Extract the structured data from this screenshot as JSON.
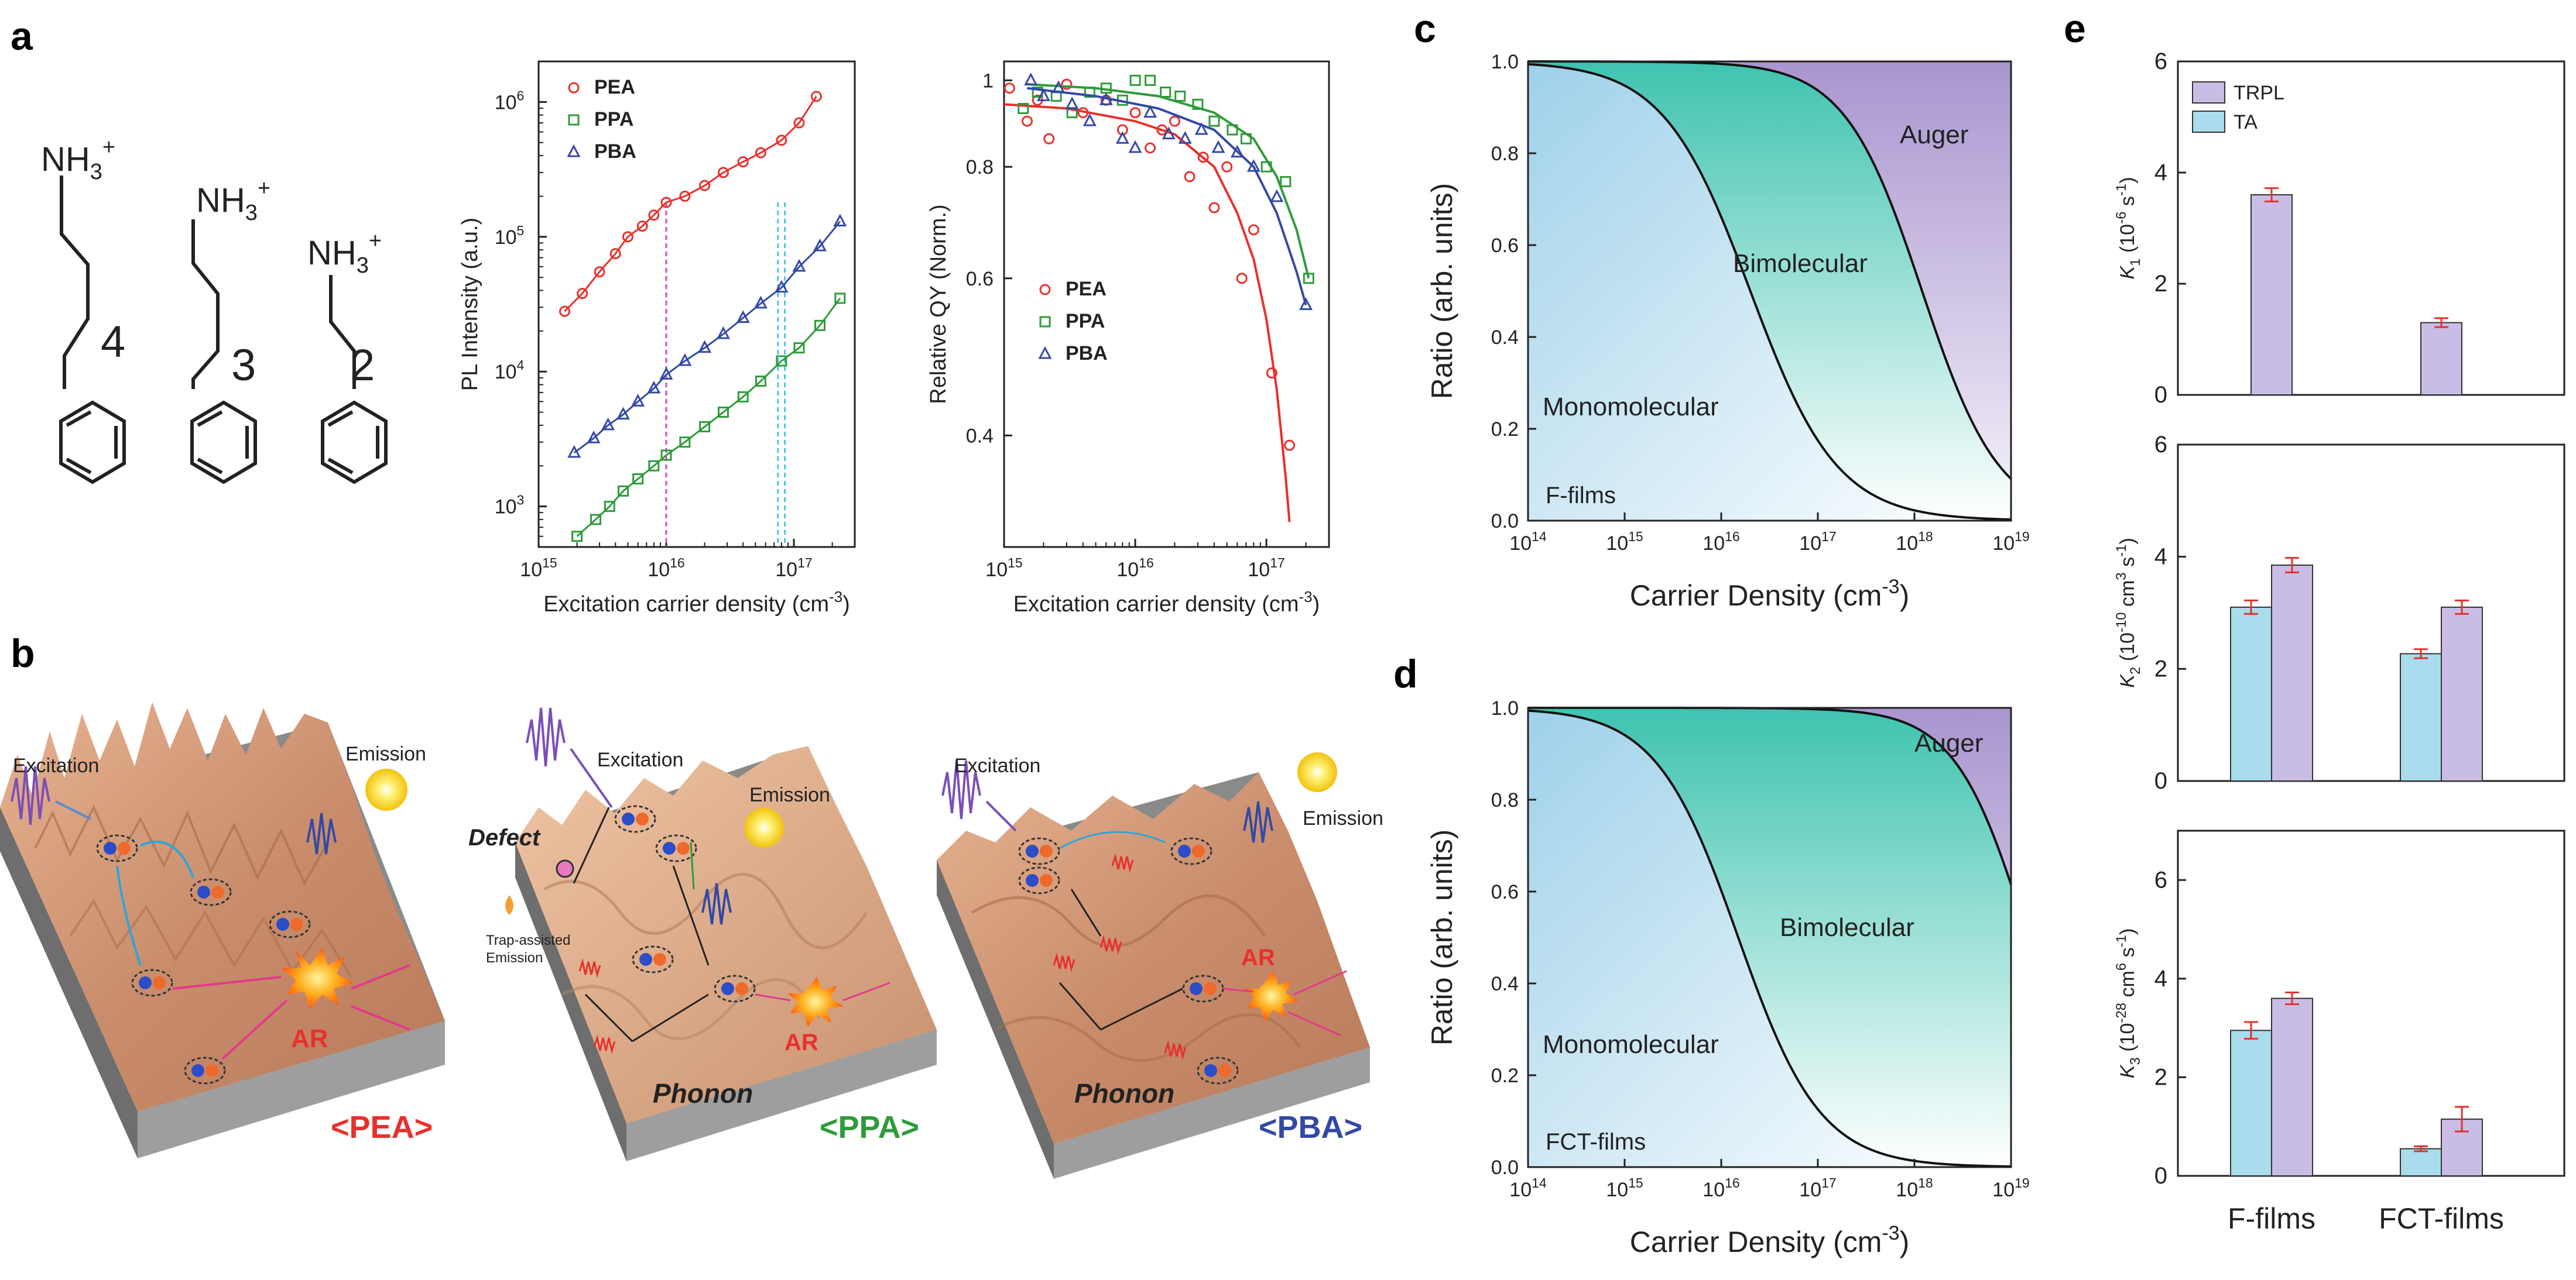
{
  "panel_labels": {
    "a": "a",
    "b": "b",
    "c": "c",
    "d": "d",
    "e": "e"
  },
  "molecules": {
    "n4": "4",
    "n3": "3",
    "n2": "2",
    "amine_prefix": "NH",
    "amine_sub": "3",
    "amine_sup": "+"
  },
  "scenes": {
    "excitation": "Excitation",
    "emission": "Emission",
    "defect": "Defect",
    "trap_line1": "Trap-assisted",
    "trap_line2": "Emission",
    "phonon": "Phonon",
    "ar": "AR",
    "pea": "<PEA>",
    "ppa": "<PPA>",
    "pba": "<PBA>"
  },
  "colors": {
    "pea": "#e8302c",
    "ppa": "#2e9b3a",
    "pba": "#3349a6",
    "auger": "#a896ce",
    "bimolecular": "#3fc2b0",
    "monomolecular": "#a7d6ec",
    "trpl": "#c9bde6",
    "ta": "#a9dcec",
    "errorbar": "#e5302c"
  },
  "chart_data": [
    {
      "id": "pl",
      "type": "scatter",
      "xlabel": "Excitation carrier density (cm",
      "xlabel_sup": "-3",
      "xlabel_end": ")",
      "ylabel": "PL Intensity (a.u.)",
      "xscale": "log",
      "yscale": "log",
      "xlim": [
        1000000000000000.0,
        3e+17
      ],
      "ylim": [
        500,
        2000000
      ],
      "xticks": [
        {
          "value": 1000000000000000.0,
          "base": "10",
          "exp": "15"
        },
        {
          "value": 1e+16,
          "base": "10",
          "exp": "16"
        },
        {
          "value": 1e+17,
          "base": "10",
          "exp": "17"
        }
      ],
      "yticks": [
        {
          "value": 1000.0,
          "base": "10",
          "exp": "3"
        },
        {
          "value": 10000.0,
          "base": "10",
          "exp": "4"
        },
        {
          "value": 100000.0,
          "base": "10",
          "exp": "5"
        },
        {
          "value": 1000000.0,
          "base": "10",
          "exp": "6"
        }
      ],
      "vlines": [
        {
          "x": 1e+16,
          "color": "#d946c8"
        },
        {
          "x": 7.5e+16,
          "color": "#4cc3e8"
        },
        {
          "x": 8.5e+16,
          "color": "#4cc3e8"
        }
      ],
      "legend": "top-left",
      "series": [
        {
          "name": "PEA",
          "marker": "circle",
          "color": "#e8302c",
          "x": [
            1600000000000000.0,
            2200000000000000.0,
            3000000000000000.0,
            4000000000000000.0,
            5000000000000000.0,
            6500000000000000.0,
            8000000000000000.0,
            1e+16,
            1.4e+16,
            2e+16,
            2.8e+16,
            4e+16,
            5.5e+16,
            8e+16,
            1.1e+17,
            1.5e+17
          ],
          "y": [
            28000,
            38000,
            55000,
            75000,
            100000,
            120000,
            145000,
            180000,
            200000,
            240000,
            300000,
            360000,
            420000,
            520000,
            700000,
            1100000
          ]
        },
        {
          "name": "PPA",
          "marker": "square",
          "color": "#2e9b3a",
          "x": [
            2000000000000000.0,
            2800000000000000.0,
            3600000000000000.0,
            4600000000000000.0,
            6000000000000000.0,
            8000000000000000.0,
            1e+16,
            1.4e+16,
            2e+16,
            2.8e+16,
            4e+16,
            5.5e+16,
            8e+16,
            1.1e+17,
            1.6e+17,
            2.3e+17
          ],
          "y": [
            600,
            800,
            1000,
            1300,
            1600,
            2000,
            2400,
            3000,
            3900,
            5000,
            6500,
            8500,
            12000,
            15000,
            22000,
            35000
          ]
        },
        {
          "name": "PBA",
          "marker": "triangle",
          "color": "#3349a6",
          "x": [
            1900000000000000.0,
            2700000000000000.0,
            3500000000000000.0,
            4600000000000000.0,
            6000000000000000.0,
            8000000000000000.0,
            1e+16,
            1.4e+16,
            2e+16,
            2.8e+16,
            4e+16,
            5.5e+16,
            8e+16,
            1.1e+17,
            1.6e+17,
            2.3e+17
          ],
          "y": [
            2500,
            3200,
            4000,
            4800,
            6000,
            7500,
            9500,
            12000,
            15000,
            19000,
            25000,
            32000,
            42000,
            60000,
            85000,
            130000
          ]
        }
      ]
    },
    {
      "id": "qy",
      "type": "scatter",
      "xlabel": "Excitation carrier density (cm",
      "xlabel_sup": "-3",
      "xlabel_end": ")",
      "ylabel": "Relative QY (Norm.)",
      "xscale": "log",
      "yscale": "log",
      "xlim": [
        1000000000000000.0,
        3e+17
      ],
      "ylim": [
        0.3,
        1.05
      ],
      "xticks": [
        {
          "value": 1000000000000000.0,
          "base": "10",
          "exp": "15"
        },
        {
          "value": 1e+16,
          "base": "10",
          "exp": "16"
        },
        {
          "value": 1e+17,
          "base": "10",
          "exp": "17"
        }
      ],
      "yticks": [
        {
          "value": 0.4,
          "label": "0.4"
        },
        {
          "value": 0.6,
          "label": "0.6"
        },
        {
          "value": 0.8,
          "label": "0.8"
        },
        {
          "value": 1.0,
          "label": "1"
        }
      ],
      "legend": "middle-left",
      "series": [
        {
          "name": "PEA",
          "marker": "circle",
          "color": "#e8302c",
          "x": [
            1100000000000000.0,
            1500000000000000.0,
            1800000000000000.0,
            2200000000000000.0,
            3000000000000000.0,
            4000000000000000.0,
            6000000000000000.0,
            8000000000000000.0,
            1e+16,
            1.3e+16,
            1.6e+16,
            2e+16,
            2.6e+16,
            3.3e+16,
            4e+16,
            5e+16,
            6.5e+16,
            8e+16,
            1.1e+17,
            1.5e+17
          ],
          "y": [
            0.98,
            0.9,
            0.95,
            0.86,
            0.99,
            0.92,
            0.95,
            0.88,
            0.92,
            0.84,
            0.88,
            0.9,
            0.78,
            0.82,
            0.72,
            0.8,
            0.6,
            0.68,
            0.47,
            0.39
          ],
          "fit_x": [
            1000000000000000.0,
            3000000000000000.0,
            1e+16,
            2e+16,
            4e+16,
            6e+16,
            8e+16,
            1e+17,
            1.2e+17,
            1.4e+17,
            1.5e+17
          ],
          "fit_y": [
            0.94,
            0.93,
            0.9,
            0.87,
            0.8,
            0.71,
            0.63,
            0.54,
            0.45,
            0.36,
            0.32
          ]
        },
        {
          "name": "PPA",
          "marker": "square",
          "color": "#2e9b3a",
          "x": [
            1400000000000000.0,
            1800000000000000.0,
            2500000000000000.0,
            3300000000000000.0,
            4500000000000000.0,
            6000000000000000.0,
            8000000000000000.0,
            1e+16,
            1.3e+16,
            1.7e+16,
            2.2e+16,
            3e+16,
            4e+16,
            5.5e+16,
            7e+16,
            1e+17,
            1.4e+17,
            2.1e+17
          ],
          "y": [
            0.93,
            0.97,
            0.96,
            0.92,
            0.97,
            0.98,
            0.95,
            1.0,
            1.0,
            0.97,
            0.96,
            0.94,
            0.9,
            0.88,
            0.86,
            0.8,
            0.77,
            0.6
          ],
          "fit_x": [
            1500000000000000.0,
            5000000000000000.0,
            1.5e+16,
            4e+16,
            8e+16,
            1.2e+17,
            1.7e+17,
            2.1e+17
          ],
          "fit_y": [
            0.99,
            0.98,
            0.96,
            0.92,
            0.86,
            0.78,
            0.68,
            0.6
          ]
        },
        {
          "name": "PBA",
          "marker": "triangle",
          "color": "#3349a6",
          "x": [
            1600000000000000.0,
            2000000000000000.0,
            2600000000000000.0,
            3300000000000000.0,
            4500000000000000.0,
            6000000000000000.0,
            8000000000000000.0,
            1e+16,
            1.3e+16,
            1.8e+16,
            2.4e+16,
            3.2e+16,
            4.3e+16,
            6e+16,
            8e+16,
            1.2e+17,
            2e+17
          ],
          "y": [
            1.0,
            0.96,
            0.98,
            0.94,
            0.9,
            0.95,
            0.86,
            0.84,
            0.92,
            0.87,
            0.86,
            0.88,
            0.84,
            0.83,
            0.8,
            0.74,
            0.56
          ],
          "fit_x": [
            1500000000000000.0,
            5000000000000000.0,
            1.5e+16,
            4e+16,
            8e+16,
            1.2e+17,
            1.7e+17,
            2e+17
          ],
          "fit_y": [
            0.98,
            0.96,
            0.93,
            0.88,
            0.8,
            0.71,
            0.61,
            0.56
          ]
        }
      ]
    },
    {
      "id": "ratio_c",
      "type": "area",
      "title": "F-films",
      "xlabel": "Carrier Density (cm",
      "xlabel_sup": "-3",
      "xlabel_end": ")",
      "ylabel": "Ratio (arb. units)",
      "xscale": "log",
      "xlim": [
        100000000000000.0,
        1e+19
      ],
      "ylim": [
        0,
        1.0
      ],
      "xticks": [
        {
          "value": 100000000000000.0,
          "base": "10",
          "exp": "14"
        },
        {
          "value": 1000000000000000.0,
          "base": "10",
          "exp": "15"
        },
        {
          "value": 1e+16,
          "base": "10",
          "exp": "16"
        },
        {
          "value": 1e+17,
          "base": "10",
          "exp": "17"
        },
        {
          "value": 1e+18,
          "base": "10",
          "exp": "18"
        },
        {
          "value": 1e+19,
          "base": "10",
          "exp": "19"
        }
      ],
      "yticks": [
        {
          "value": 0.0,
          "label": "0.0"
        },
        {
          "value": 0.2,
          "label": "0.2"
        },
        {
          "value": 0.4,
          "label": "0.4"
        },
        {
          "value": 0.6,
          "label": "0.6"
        },
        {
          "value": 0.8,
          "label": "0.8"
        },
        {
          "value": 1.0,
          "label": "1.0"
        }
      ],
      "region_labels": [
        "Auger",
        "Bimolecular",
        "Monomolecular"
      ],
      "curve1_mid_x": 2e+16,
      "curve1_width": 0.9,
      "curve2_mid_x": 1.2e+18,
      "curve2_width": 0.8
    },
    {
      "id": "ratio_d",
      "type": "area",
      "title": "FCT-films",
      "xlabel": "Carrier Density (cm",
      "xlabel_sup": "-3",
      "xlabel_end": ")",
      "ylabel": "Ratio (arb. units)",
      "xscale": "log",
      "xlim": [
        100000000000000.0,
        1e+19
      ],
      "ylim": [
        0,
        1.0
      ],
      "xticks": [
        {
          "value": 100000000000000.0,
          "base": "10",
          "exp": "14"
        },
        {
          "value": 1000000000000000.0,
          "base": "10",
          "exp": "15"
        },
        {
          "value": 1e+16,
          "base": "10",
          "exp": "16"
        },
        {
          "value": 1e+17,
          "base": "10",
          "exp": "17"
        },
        {
          "value": 1e+18,
          "base": "10",
          "exp": "18"
        },
        {
          "value": 1e+19,
          "base": "10",
          "exp": "19"
        }
      ],
      "yticks": [
        {
          "value": 0.0,
          "label": "0.0"
        },
        {
          "value": 0.2,
          "label": "0.2"
        },
        {
          "value": 0.4,
          "label": "0.4"
        },
        {
          "value": 0.6,
          "label": "0.6"
        },
        {
          "value": 0.8,
          "label": "0.8"
        },
        {
          "value": 1.0,
          "label": "1.0"
        }
      ],
      "region_labels": [
        "Auger",
        "Bimolecular",
        "Monomolecular"
      ],
      "curve1_mid_x": 1.5e+16,
      "curve1_width": 0.85,
      "curve2_mid_x": 1.5e+19,
      "curve2_width": 0.75
    },
    {
      "id": "rates",
      "type": "bar",
      "categories": [
        "F-films",
        "FCT-films"
      ],
      "legend": [
        "TRPL",
        "TA"
      ],
      "panels": [
        {
          "id": "k1",
          "ylabel": "K",
          "sub": "1",
          "unit": " (10",
          "unit_exp": "-6",
          "unit_mid": " s",
          "unit_exp2": "-1",
          "unit_end": ")",
          "ylim": [
            0,
            6
          ],
          "yticks": [
            0,
            2,
            4,
            6
          ],
          "TRPL": [
            3.6,
            1.3
          ],
          "TRPL_err": [
            0.12,
            0.08
          ],
          "TA": [
            null,
            null
          ],
          "TA_err": [
            null,
            null
          ]
        },
        {
          "id": "k2",
          "ylabel": "K",
          "sub": "2",
          "unit": " (10",
          "unit_exp": "-10",
          "unit_mid": " cm",
          "unit_exp2": "3",
          "unit_mid2": " s",
          "unit_exp3": "-1",
          "unit_end": ")",
          "ylim": [
            0,
            6
          ],
          "yticks": [
            0,
            2,
            4,
            6
          ],
          "TRPL": [
            3.85,
            3.1
          ],
          "TRPL_err": [
            0.13,
            0.12
          ],
          "TA": [
            3.1,
            2.27
          ],
          "TA_err": [
            0.12,
            0.08
          ]
        },
        {
          "id": "k3",
          "ylabel": "K",
          "sub": "3",
          "unit": " (10",
          "unit_exp": "-28",
          "unit_mid": " cm",
          "unit_exp2": "6",
          "unit_mid2": " s",
          "unit_exp3": "-1",
          "unit_end": ")",
          "ylim": [
            0,
            7
          ],
          "yticks": [
            0,
            2,
            4,
            6
          ],
          "TRPL": [
            3.6,
            1.15
          ],
          "TRPL_err": [
            0.12,
            0.25
          ],
          "TA": [
            2.95,
            0.55
          ],
          "TA_err": [
            0.17,
            0.05
          ]
        }
      ]
    }
  ]
}
